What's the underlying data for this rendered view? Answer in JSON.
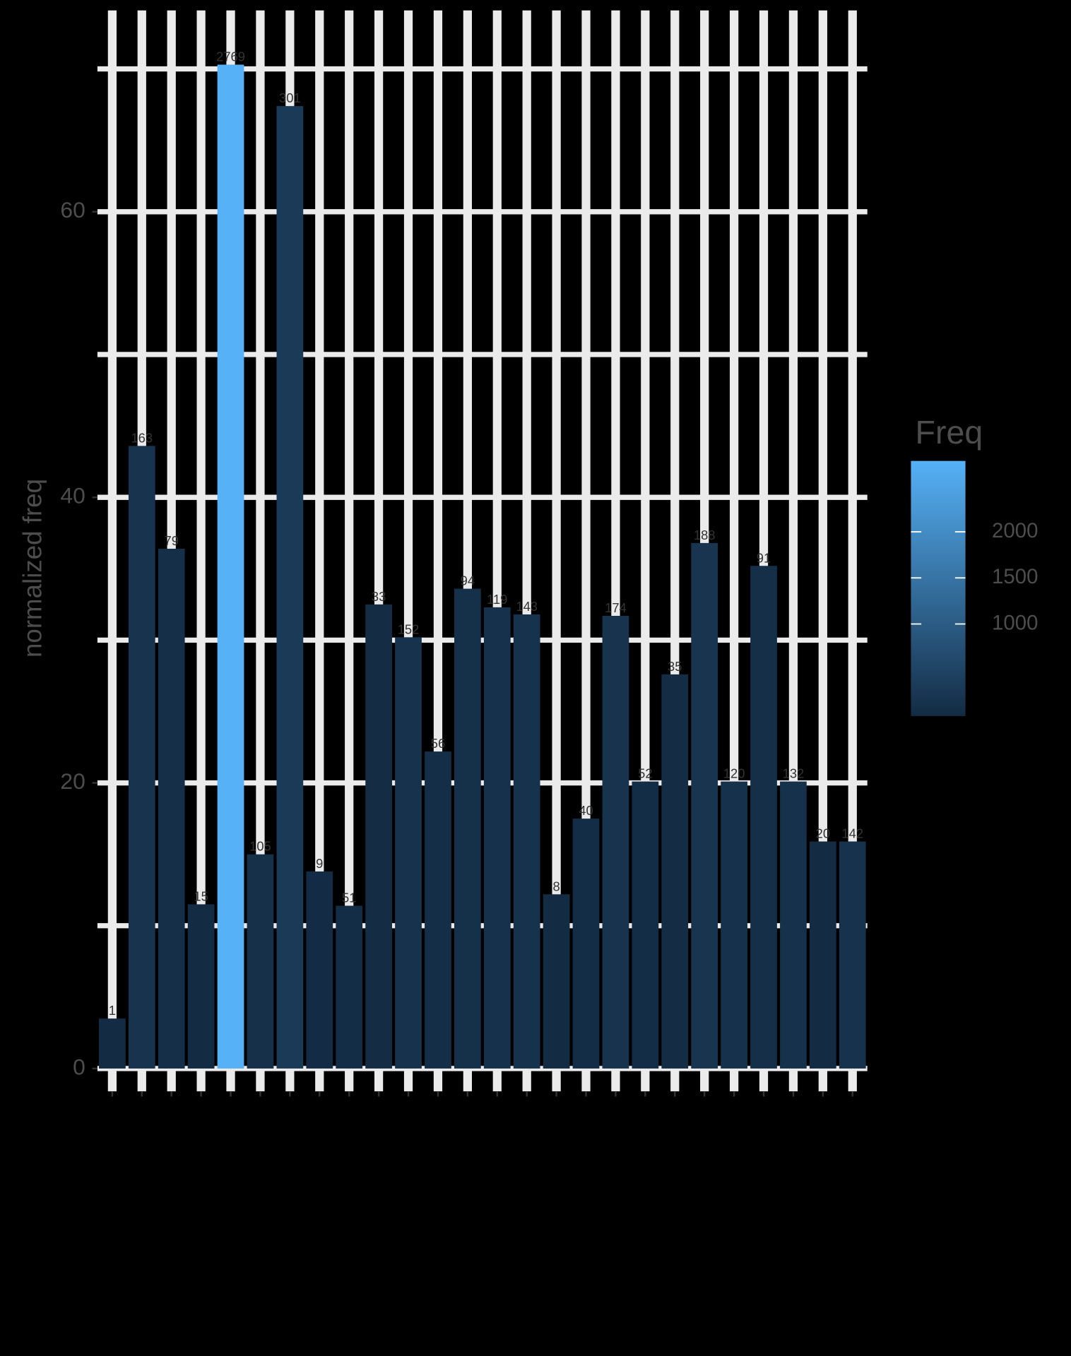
{
  "chart_data": {
    "type": "bar",
    "y_label": "normalized freq",
    "legend_title": "Freq",
    "categories": [
      null,
      null,
      null,
      null,
      null,
      null,
      null,
      null,
      null,
      null,
      null,
      null,
      null,
      null,
      null,
      null,
      null,
      null,
      null,
      null,
      null,
      null,
      null,
      null,
      null,
      null
    ],
    "values": [
      3.5,
      43.6,
      36.4,
      11.5,
      70.3,
      15.0,
      67.4,
      13.8,
      11.4,
      32.5,
      30.2,
      22.2,
      33.6,
      32.3,
      31.8,
      12.2,
      17.5,
      31.7,
      20.1,
      27.6,
      36.8,
      20.1,
      35.2,
      20.1,
      15.9,
      15.9
    ],
    "freq": [
      1,
      163,
      79,
      15,
      2769,
      105,
      301,
      9,
      51,
      33,
      152,
      56,
      94,
      119,
      143,
      8,
      40,
      174,
      52,
      35,
      188,
      120,
      91,
      132,
      20,
      142
    ],
    "color_low": "#132B43",
    "color_high": "#56B1F7",
    "legend_lim": [
      1,
      2769
    ],
    "legend_ticks": [
      1000,
      1500,
      2000
    ],
    "ylim": [
      -1.6,
      74.1
    ],
    "yticks": [
      0,
      20,
      40,
      60
    ],
    "minor_yticks": [
      10,
      30,
      50,
      70
    ],
    "grid": true
  }
}
